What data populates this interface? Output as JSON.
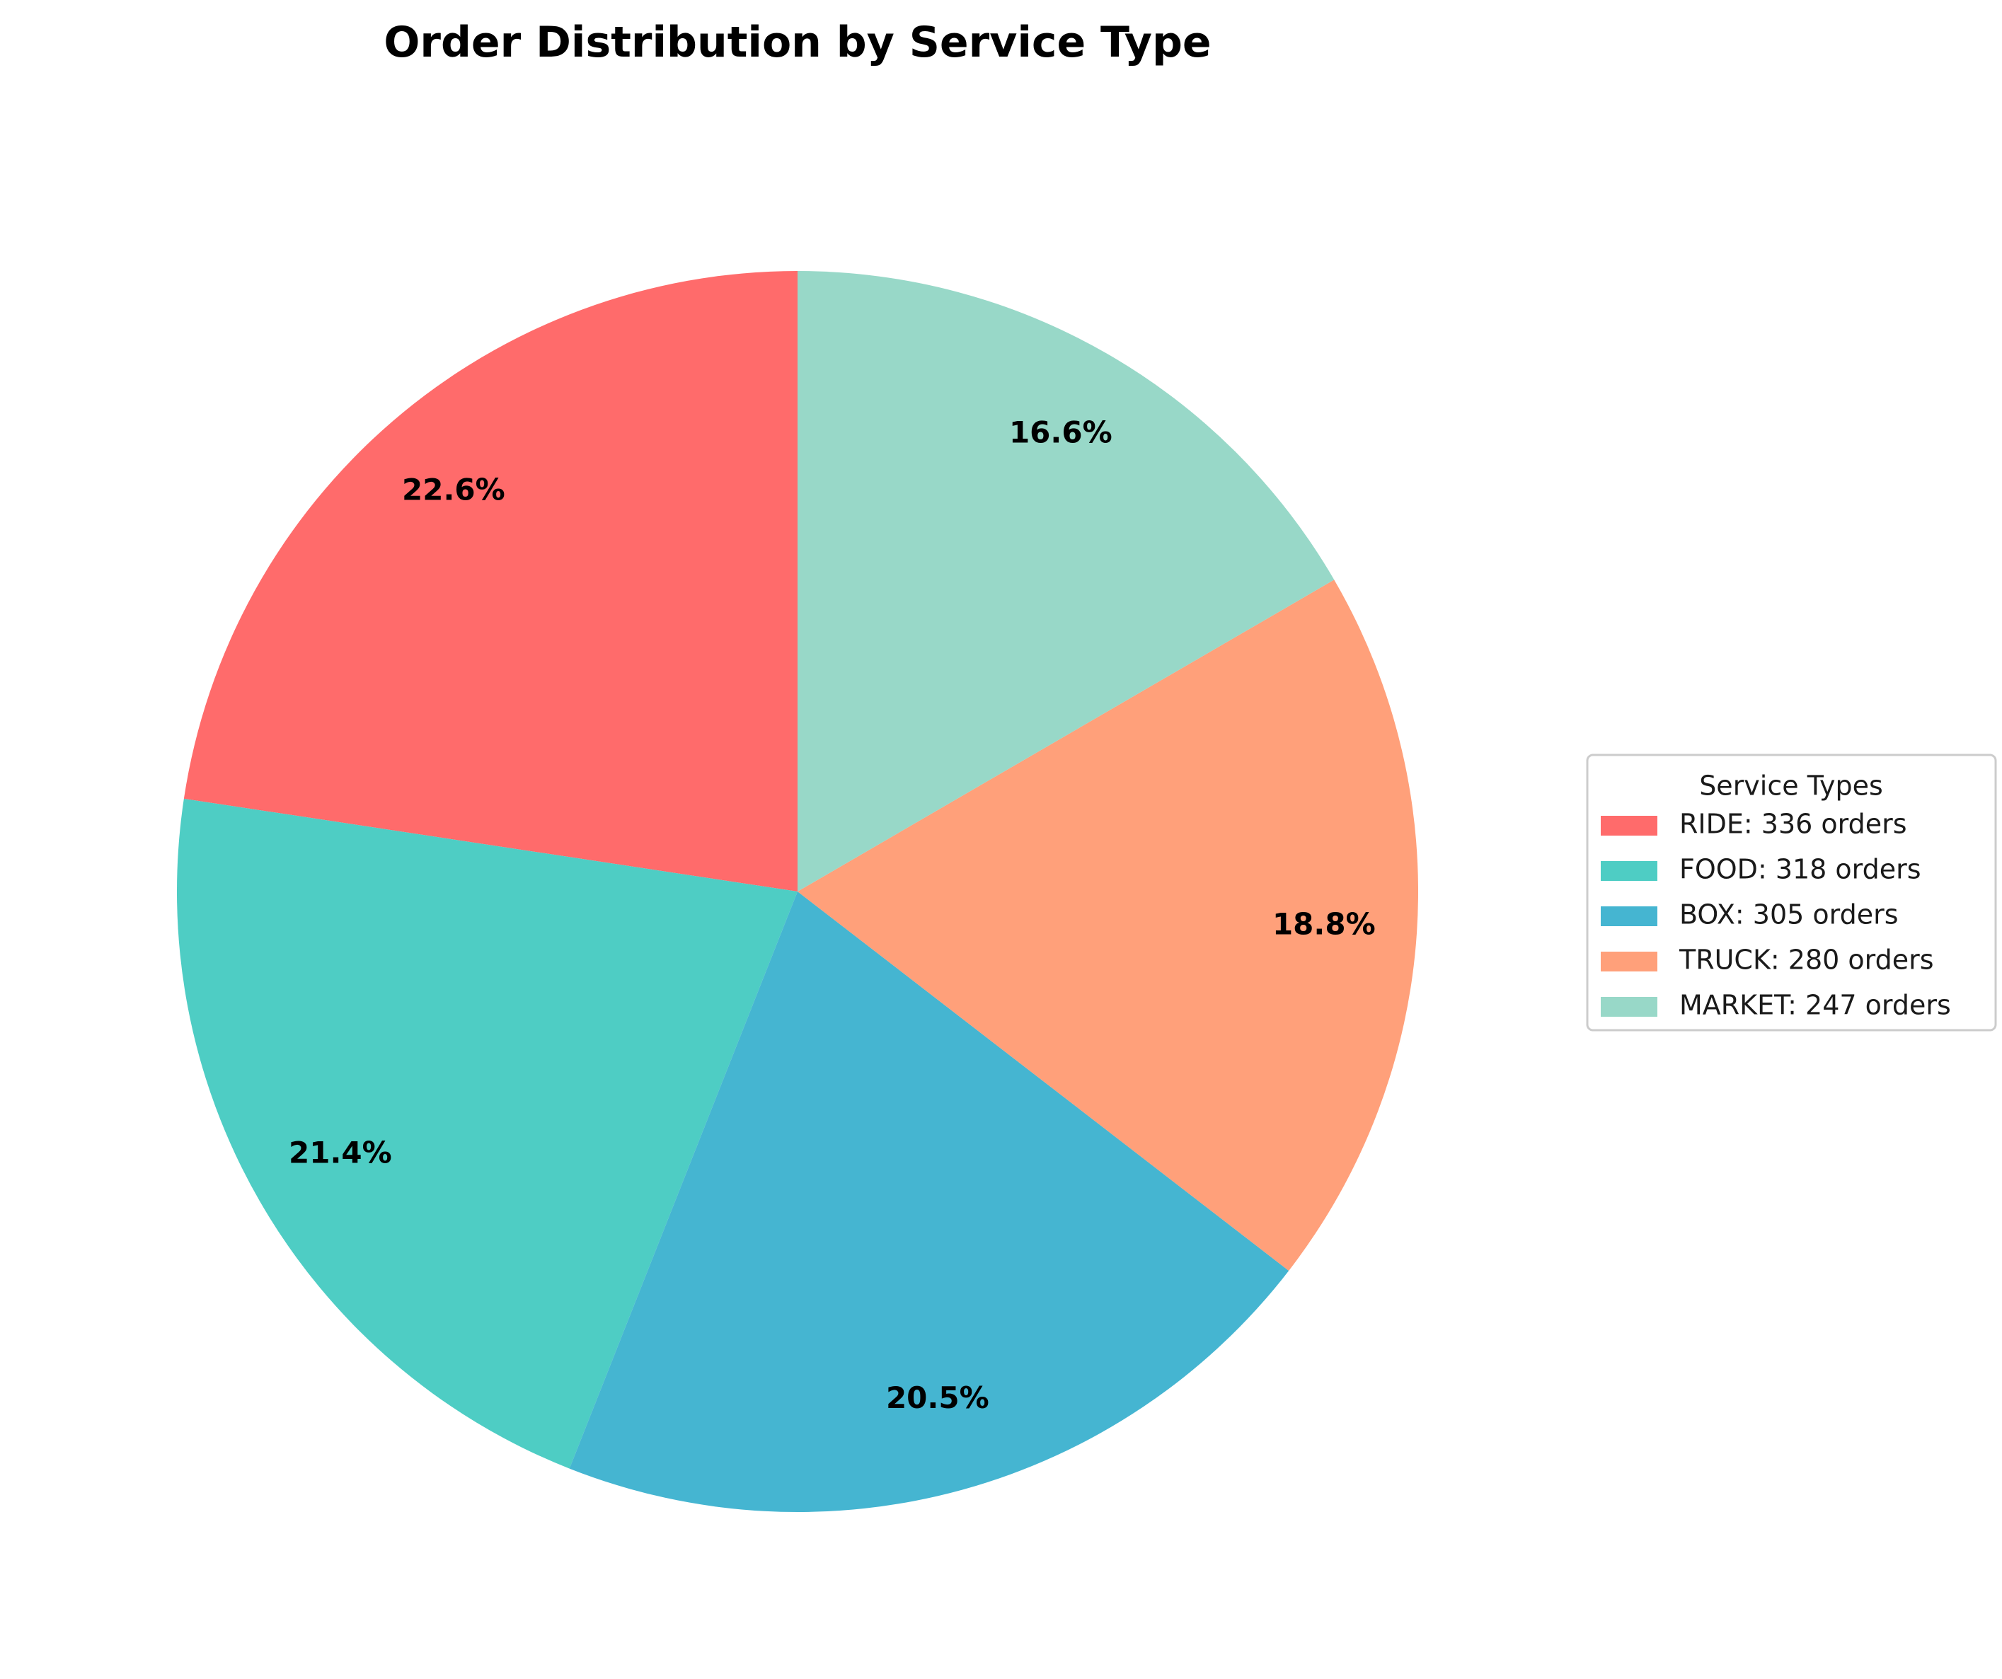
{
  "chart_data": {
    "type": "pie",
    "title": "Order Distribution by Service Type",
    "start_angle_deg": 90,
    "direction": "counterclockwise",
    "slices": [
      {
        "category": "RIDE",
        "value": 336,
        "percent_label": "22.6%",
        "legend_label": "RIDE: 336 orders",
        "color": "#FF6B6B"
      },
      {
        "category": "FOOD",
        "value": 318,
        "percent_label": "21.4%",
        "legend_label": "FOOD: 318 orders",
        "color": "#4ECDC4"
      },
      {
        "category": "BOX",
        "value": 305,
        "percent_label": "20.5%",
        "legend_label": "BOX: 305 orders",
        "color": "#45B5D1"
      },
      {
        "category": "TRUCK",
        "value": 280,
        "percent_label": "18.8%",
        "legend_label": "TRUCK: 280 orders",
        "color": "#FFA07A"
      },
      {
        "category": "MARKET",
        "value": 247,
        "percent_label": "16.6%",
        "legend_label": "MARKET: 247 orders",
        "color": "#98D8C8"
      }
    ],
    "legend": {
      "title": "Service Types",
      "placement": "right"
    }
  }
}
